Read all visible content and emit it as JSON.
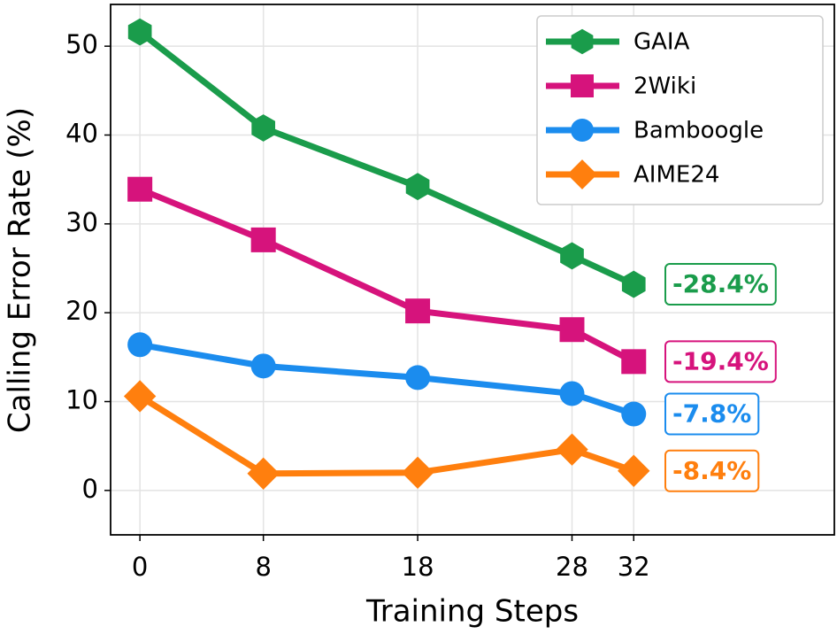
{
  "chart_data": {
    "type": "line",
    "x_label": "Training Steps",
    "y_label": "Calling Error Rate (%)",
    "x": [
      0,
      8,
      18,
      28,
      32
    ],
    "series": [
      {
        "name": "GAIA",
        "color": "#1a9c4b",
        "marker": "hexagon",
        "values": [
          51.6,
          40.8,
          34.2,
          26.4,
          23.2
        ],
        "annotation": "-28.4%"
      },
      {
        "name": "2Wiki",
        "color": "#d6137c",
        "marker": "square",
        "values": [
          33.9,
          28.2,
          20.2,
          18.1,
          14.5
        ],
        "annotation": "-19.4%"
      },
      {
        "name": "Bamboogle",
        "color": "#1b8cee",
        "marker": "circle",
        "values": [
          16.4,
          14.0,
          12.7,
          10.9,
          8.6
        ],
        "annotation": "-7.8%"
      },
      {
        "name": "AIME24",
        "color": "#ff7f0e",
        "marker": "diamond",
        "values": [
          10.6,
          1.9,
          2.0,
          4.6,
          2.2
        ],
        "annotation": "-8.4%"
      }
    ],
    "xlim": [
      -1.9,
      45
    ],
    "ylim": [
      -5,
      54.7
    ],
    "xticks": [
      0,
      8,
      18,
      28,
      32
    ],
    "yticks": [
      0,
      10,
      20,
      30,
      40,
      50
    ],
    "grid": true,
    "legend": "upper right"
  }
}
